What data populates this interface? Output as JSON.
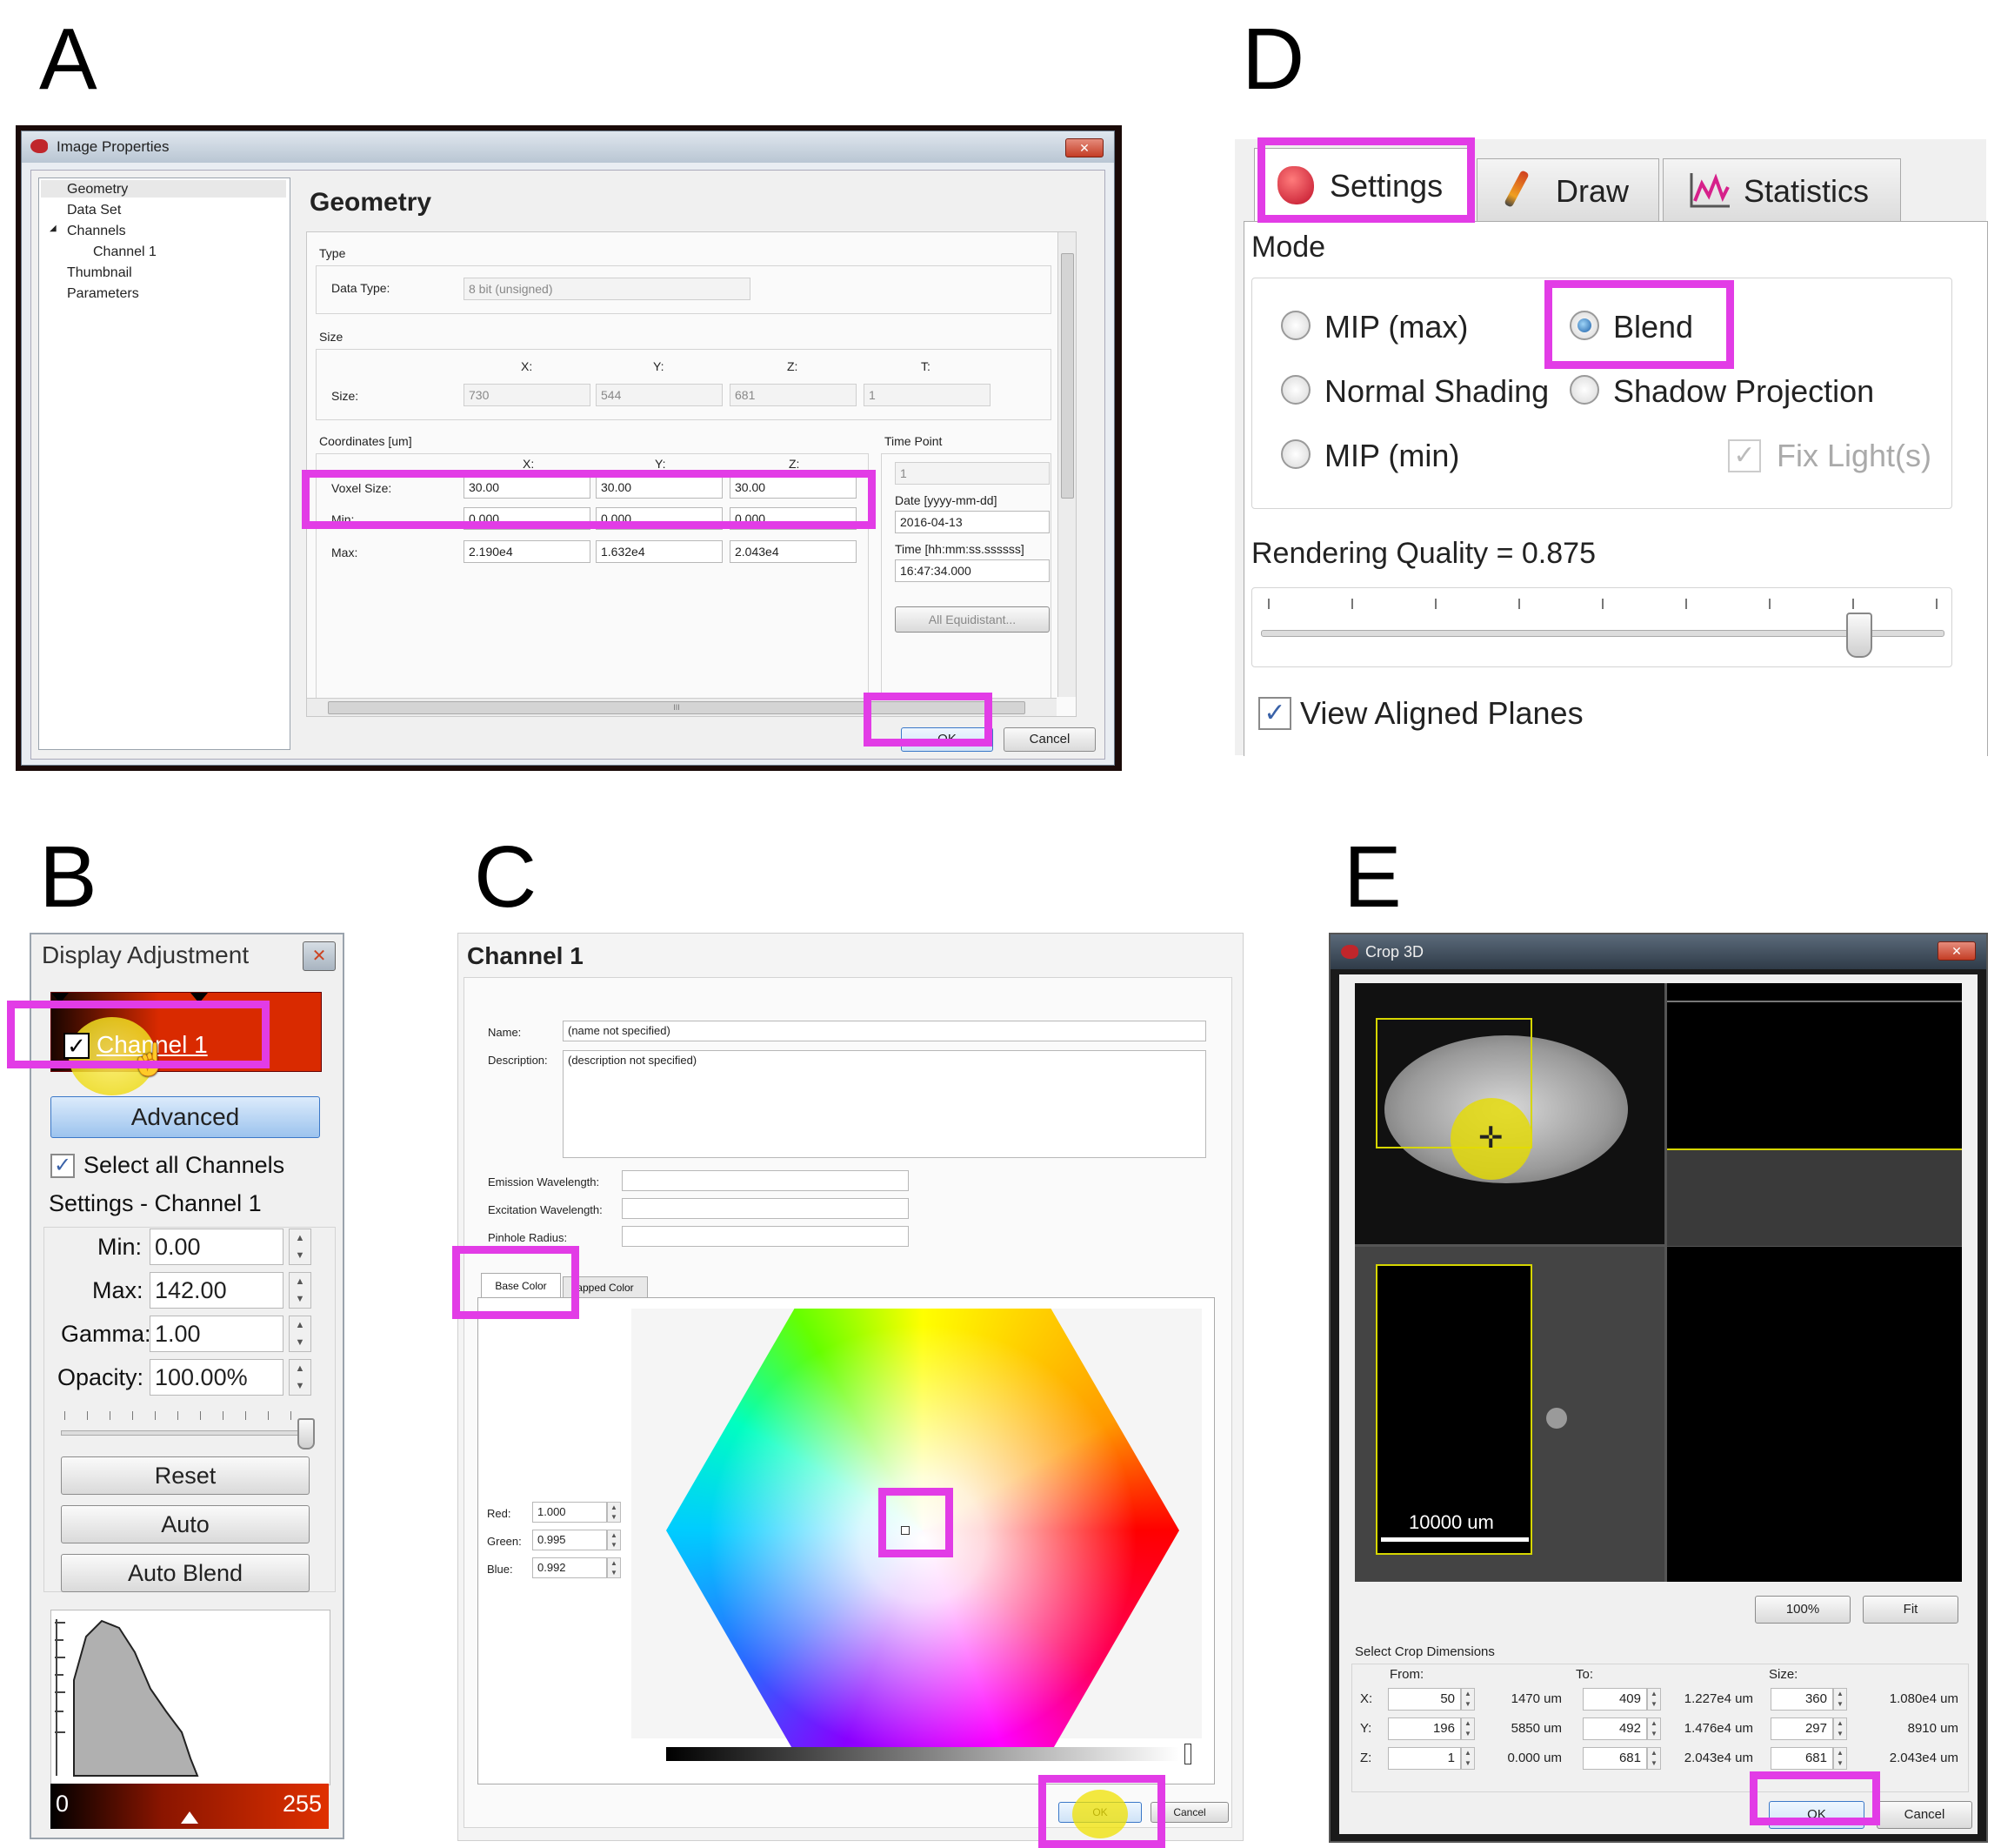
{
  "panels": {
    "a": "A",
    "b": "B",
    "c": "C",
    "d": "D",
    "e": "E"
  },
  "icons": {
    "app": "app-icon",
    "close": "close-icon",
    "settings": "settings-icon",
    "draw": "brush-icon",
    "statistics": "statistics-icon",
    "cursor": "cursor-icon",
    "crosshair": "crosshair-icon"
  },
  "colors": {
    "highlight": "#e23ce6",
    "accent": "#3b78c8",
    "channel_red": "#d92a00"
  },
  "image_properties": {
    "title": "Image Properties",
    "tree": [
      "Geometry",
      "Data Set",
      "Channels",
      "Channel 1",
      "Thumbnail",
      "Parameters"
    ],
    "heading": "Geometry",
    "type_label": "Type",
    "data_type_label": "Data Type:",
    "data_type_value": "8 bit (unsigned)",
    "size_label": "Size",
    "size_row_label": "Size:",
    "size_headers": [
      "X:",
      "Y:",
      "Z:",
      "T:"
    ],
    "size_values": [
      "730",
      "544",
      "681",
      "1"
    ],
    "coords_label": "Coordinates [um]",
    "coord_headers": [
      "X:",
      "Y:",
      "Z:"
    ],
    "voxel_label": "Voxel Size:",
    "voxel_values": [
      "30.00",
      "30.00",
      "30.00"
    ],
    "min_label": "Min:",
    "min_values": [
      "0.000",
      "0.000",
      "0.000"
    ],
    "max_label": "Max:",
    "max_values": [
      "2.190e4",
      "1.632e4",
      "2.043e4"
    ],
    "timepoint_label": "Time Point",
    "timepoint_value": "1",
    "date_label": "Date [yyyy-mm-dd]",
    "date_value": "2016-04-13",
    "time_label": "Time [hh:mm:ss.ssssss]",
    "time_value": "16:47:34.000",
    "equidistant_button": "All Equidistant...",
    "hscroll_grip": "III",
    "ok": "OK",
    "cancel": "Cancel"
  },
  "display_adjustment": {
    "title": "Display Adjustment",
    "channel_label": "Channel 1",
    "advanced": "Advanced",
    "select_all": "Select all Channels",
    "settings_label": "Settings - Channel 1",
    "min_label": "Min:",
    "min_value": "0.00",
    "max_label": "Max:",
    "max_value": "142.00",
    "gamma_label": "Gamma:",
    "gamma_value": "1.00",
    "opacity_label": "Opacity:",
    "opacity_value": "100.00%",
    "opacity_fraction": 1.0,
    "reset": "Reset",
    "auto": "Auto",
    "auto_blend": "Auto Blend",
    "hist_min": "0",
    "hist_max": "255"
  },
  "channel_dialog": {
    "title": "Channel 1",
    "name_label": "Name:",
    "name_value": "(name not specified)",
    "description_label": "Description:",
    "description_value": "(description not specified)",
    "emission_label": "Emission Wavelength:",
    "excitation_label": "Excitation Wavelength:",
    "pinhole_label": "Pinhole Radius:",
    "tab_base": "Base Color",
    "tab_mapped": "Mapped Color",
    "tab_mapped_visible": "apped Color",
    "red_label": "Red:",
    "red_value": "1.000",
    "green_label": "Green:",
    "green_value": "0.995",
    "blue_label": "Blue:",
    "blue_value": "0.992",
    "ok": "OK",
    "cancel": "Cancel"
  },
  "render_settings": {
    "tabs": [
      "Settings",
      "Draw",
      "Statistics"
    ],
    "mode_label": "Mode",
    "options": [
      "MIP (max)",
      "Blend",
      "Normal Shading",
      "Shadow Projection",
      "MIP (min)"
    ],
    "selected": "Blend",
    "fix_lights": "Fix Light(s)",
    "quality_label": "Rendering Quality = 0.875",
    "quality_value": 0.875,
    "view_aligned": "View Aligned Planes"
  },
  "crop3d": {
    "title": "Crop 3D",
    "scale_bar": "10000 um",
    "zoom_100": "100%",
    "fit": "Fit",
    "select_label": "Select Crop Dimensions",
    "from_label": "From:",
    "to_label": "To:",
    "size_label": "Size:",
    "rows": [
      {
        "axis": "X:",
        "from": "50",
        "from_um": "1470 um",
        "to": "409",
        "to_um": "1.227e4 um",
        "size": "360",
        "size_um": "1.080e4 um"
      },
      {
        "axis": "Y:",
        "from": "196",
        "from_um": "5850 um",
        "to": "492",
        "to_um": "1.476e4 um",
        "size": "297",
        "size_um": "8910 um"
      },
      {
        "axis": "Z:",
        "from": "1",
        "from_um": "0.000 um",
        "to": "681",
        "to_um": "2.043e4 um",
        "size": "681",
        "size_um": "2.043e4 um"
      }
    ],
    "ok": "OK",
    "cancel": "Cancel"
  }
}
